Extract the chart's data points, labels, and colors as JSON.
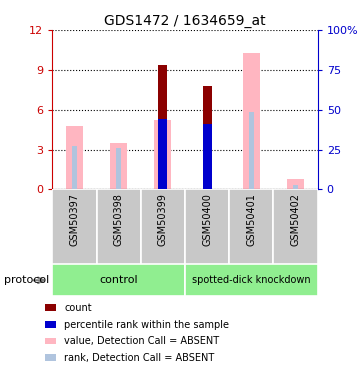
{
  "title": "GDS1472 / 1634659_at",
  "samples": [
    "GSM50397",
    "GSM50398",
    "GSM50399",
    "GSM50400",
    "GSM50401",
    "GSM50402"
  ],
  "group_labels": [
    "control",
    "spotted-dick knockdown"
  ],
  "ylim_left": [
    0,
    12
  ],
  "ylim_right": [
    0,
    100
  ],
  "yticks_left": [
    0,
    3,
    6,
    9,
    12
  ],
  "yticks_right": [
    0,
    25,
    50,
    75,
    100
  ],
  "ytick_labels_right": [
    "0",
    "25",
    "50",
    "75",
    "100%"
  ],
  "count_values": [
    0,
    0,
    9.4,
    7.8,
    0,
    0
  ],
  "rank_values": [
    0,
    0,
    5.3,
    4.9,
    0,
    0
  ],
  "absent_value_values": [
    4.8,
    3.5,
    5.2,
    0,
    10.3,
    0.8
  ],
  "absent_rank_values": [
    3.3,
    3.1,
    0,
    0,
    5.8,
    0.3
  ],
  "color_count": "#8B0000",
  "color_rank": "#0000CD",
  "color_absent_value": "#FFB6C1",
  "color_absent_rank": "#B0C4DE",
  "left_label_color": "#CC0000",
  "right_label_color": "#0000CC",
  "bg_xticklabels": "#C8C8C8",
  "bg_group_control": "#90EE90",
  "bg_group_knockdown": "#90EE90",
  "absent_value_bar_width": 0.38,
  "absent_rank_bar_width": 0.1,
  "count_bar_width": 0.2,
  "rank_bar_width": 0.2
}
